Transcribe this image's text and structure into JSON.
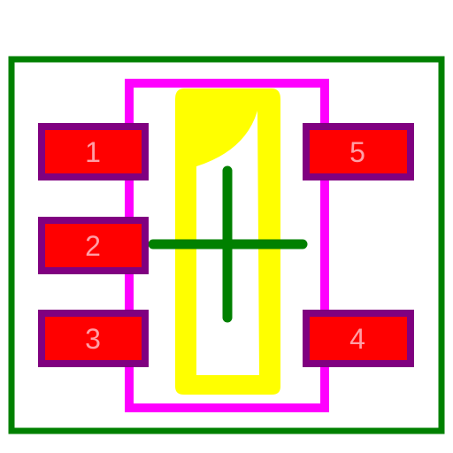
{
  "colors": {
    "background": "#ffffff",
    "courtyard": "#008000",
    "silkscreen": "#ff00ff",
    "assembly": "#ffff00",
    "pad_fill": "#ff0000",
    "pad_outline": "#800080",
    "pad_label": "#ff9ea5",
    "origin_cross": "#008000"
  },
  "pads": [
    {
      "id": "pad-1",
      "label": "1",
      "side": "left",
      "row": 1
    },
    {
      "id": "pad-2",
      "label": "2",
      "side": "left",
      "row": 2
    },
    {
      "id": "pad-3",
      "label": "3",
      "side": "left",
      "row": 3
    },
    {
      "id": "pad-4",
      "label": "4",
      "side": "right",
      "row": 3
    },
    {
      "id": "pad-5",
      "label": "5",
      "side": "right",
      "row": 1
    }
  ]
}
